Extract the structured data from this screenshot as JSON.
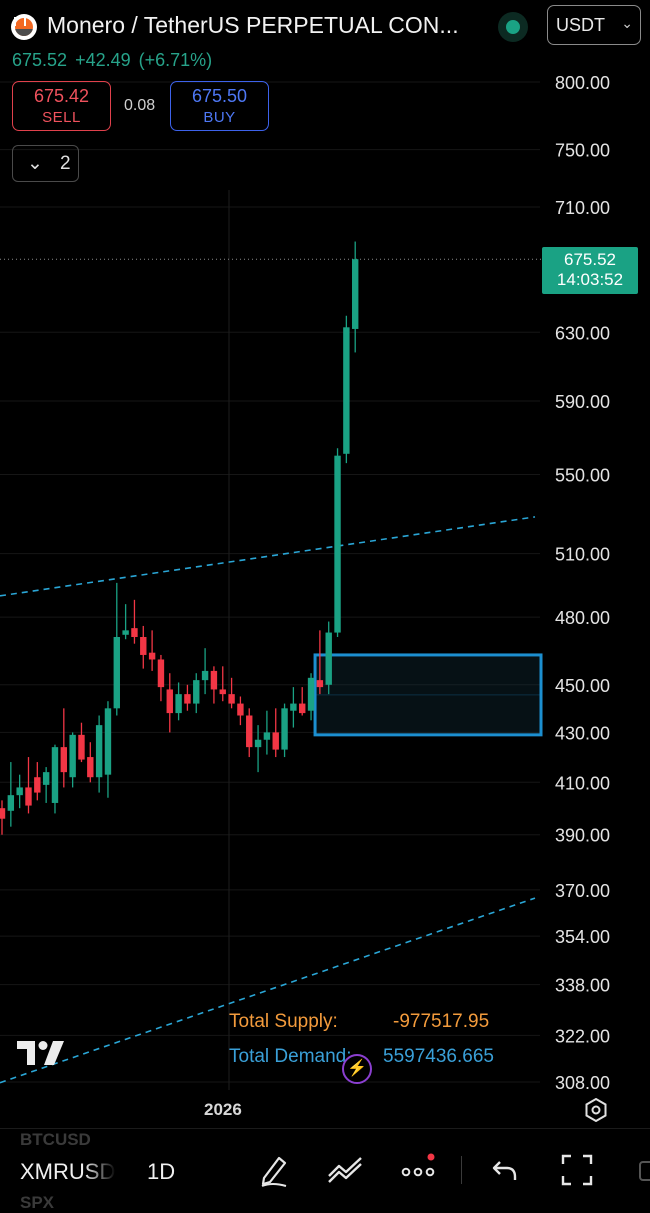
{
  "header": {
    "title": "Monero / TetherUS PERPETUAL CON...",
    "currency": "USDT",
    "last_price": "675.52",
    "change": "+42.49",
    "change_pct": "(+6.71%)",
    "sell_price": "675.42",
    "sell_label": "SELL",
    "buy_price": "675.50",
    "buy_label": "BUY",
    "spread": "0.08",
    "collapse_count": "2"
  },
  "colors": {
    "up": "#1aa284",
    "down": "#f23645",
    "accent": "#1aa284",
    "zone": "#1c8fd0",
    "trend": "#2aa6d6"
  },
  "price_tag": {
    "price": "675.52",
    "countdown": "14:03:52"
  },
  "axis": {
    "ticks": [
      "800.00",
      "750.00",
      "710.00",
      "630.00",
      "590.00",
      "550.00",
      "510.00",
      "480.00",
      "450.00",
      "430.00",
      "410.00",
      "390.00",
      "370.00",
      "354.00",
      "338.00",
      "322.00",
      "308.00"
    ],
    "year_label": "2026"
  },
  "indicator": {
    "supply_label": "Total Supply:",
    "supply_value": "-977517.95",
    "demand_label": "Total Demand:",
    "demand_value": "5597436.665"
  },
  "toolbar": {
    "symbol": "XMRUSD",
    "interval": "1D",
    "ghost_symbol_above": "BTCUSD",
    "ghost_symbol_below": "SPX"
  },
  "chart_data": {
    "type": "candlestick",
    "scale": "log",
    "ylim": [
      308,
      800
    ],
    "candles": [
      [
        400,
        403,
        390,
        396
      ],
      [
        399,
        418,
        393,
        405
      ],
      [
        405,
        413,
        400,
        408
      ],
      [
        408,
        420,
        398,
        401
      ],
      [
        412,
        418,
        403,
        406
      ],
      [
        409,
        416,
        402,
        414
      ],
      [
        402,
        425,
        398,
        424
      ],
      [
        424,
        440,
        408,
        414
      ],
      [
        412,
        430,
        408,
        429
      ],
      [
        429,
        434,
        418,
        419
      ],
      [
        420,
        426,
        410,
        412
      ],
      [
        412,
        437,
        406,
        433
      ],
      [
        413,
        443,
        404,
        440
      ],
      [
        440,
        496,
        437,
        471
      ],
      [
        472,
        486,
        470,
        474
      ],
      [
        475,
        488,
        468,
        471
      ],
      [
        471,
        476,
        457,
        463
      ],
      [
        464,
        474,
        456,
        461
      ],
      [
        461,
        463,
        443,
        449
      ],
      [
        448,
        455,
        430,
        438
      ],
      [
        438,
        451,
        435,
        446
      ],
      [
        446,
        450,
        439,
        442
      ],
      [
        442,
        455,
        438,
        452
      ],
      [
        452,
        466,
        446,
        456
      ],
      [
        456,
        458,
        442,
        448
      ],
      [
        448,
        458,
        443,
        446
      ],
      [
        446,
        453,
        440,
        442
      ],
      [
        442,
        445,
        433,
        437
      ],
      [
        437,
        440,
        420,
        424
      ],
      [
        424,
        433,
        414,
        427
      ],
      [
        427,
        439,
        421,
        430
      ],
      [
        430,
        440,
        420,
        423
      ],
      [
        423,
        442,
        420,
        440
      ],
      [
        439,
        449,
        432,
        442
      ],
      [
        442,
        449,
        437,
        438
      ],
      [
        439,
        455,
        435,
        453
      ],
      [
        452,
        474,
        446,
        449
      ],
      [
        450,
        478,
        446,
        473
      ],
      [
        473,
        564,
        471,
        560
      ],
      [
        561,
        640,
        556,
        633
      ],
      [
        632,
        687,
        618,
        675.52
      ]
    ],
    "last_price": 675.52,
    "demand_zone": [
      429,
      463
    ],
    "trendlines": [
      {
        "from": [
          0,
          490
        ],
        "to": [
          40,
          515
        ]
      },
      {
        "from": [
          0,
          308
        ],
        "to": [
          40,
          346
        ]
      }
    ]
  }
}
